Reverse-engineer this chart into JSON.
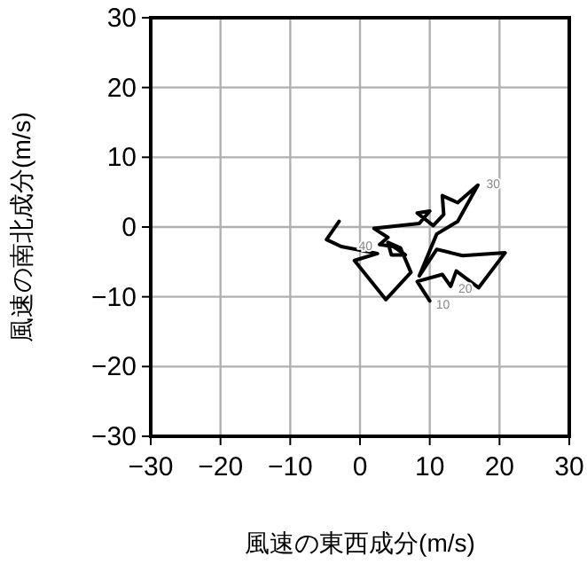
{
  "chart_data": {
    "type": "line",
    "xlabel": "風速の東西成分(m/s)",
    "ylabel": "風速の南北成分(m/s)",
    "series": [
      {
        "color": "#000000",
        "x": [
          10.0,
          8.2,
          11.8,
          13.0,
          13.8,
          17.0,
          20.8,
          14.7,
          11.0,
          8.5,
          11.0,
          14.0,
          16.9,
          14.0,
          11.8,
          12.0,
          10.5,
          8.2,
          10.0,
          8.5,
          2.0,
          4.0,
          2.8,
          4.8,
          6.5,
          4.5,
          4.0,
          5.8,
          7.3,
          3.7,
          -0.8,
          2.5,
          -2.7,
          -4.8,
          -3.0
        ],
        "values": [
          -10.6,
          -7.8,
          -6.8,
          -8.5,
          -6.3,
          -8.7,
          -3.7,
          -4.1,
          -3.2,
          -7.0,
          -1.0,
          0.8,
          6.0,
          3.5,
          4.5,
          1.8,
          0.2,
          2.0,
          2.3,
          0.5,
          -0.2,
          -1.5,
          -2.5,
          -2.8,
          -4.0,
          -4.0,
          -2.2,
          -3.0,
          -6.5,
          -10.4,
          -4.8,
          -3.8,
          -2.8,
          -1.8,
          0.8
        ]
      }
    ],
    "annotations": [
      {
        "text": "10",
        "x": 10.4,
        "y": -10.9
      },
      {
        "text": "20",
        "x": 13.6,
        "y": -8.7
      },
      {
        "text": "30",
        "x": 17.6,
        "y": 6.3
      },
      {
        "text": "40",
        "x": 2.8,
        "y": -2.5
      }
    ],
    "xlim": [
      -30,
      30
    ],
    "ylim": [
      -30,
      30
    ],
    "xticks": [
      {
        "value": -30,
        "label": "−30"
      },
      {
        "value": -20,
        "label": "−20"
      },
      {
        "value": -10,
        "label": "−10"
      },
      0,
      10,
      20,
      30
    ],
    "yticks": [
      {
        "value": -30,
        "label": "−30"
      },
      {
        "value": -20,
        "label": "−20"
      },
      {
        "value": -10,
        "label": "−10"
      },
      0,
      10,
      20,
      30
    ],
    "grid": true
  }
}
